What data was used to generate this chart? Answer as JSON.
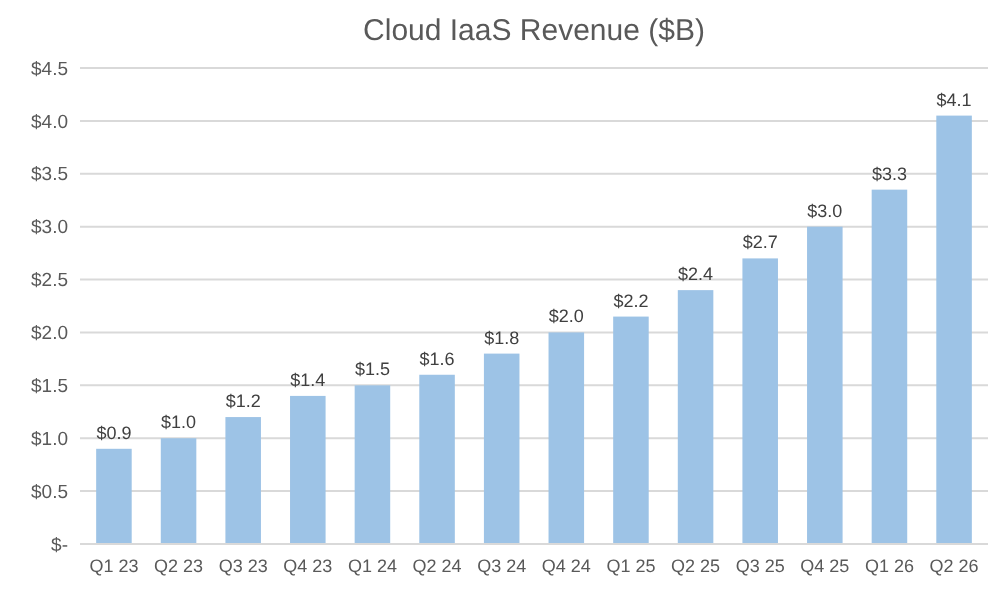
{
  "chart_data": {
    "type": "bar",
    "title": "Cloud IaaS Revenue ($B)",
    "categories": [
      "Q1 23",
      "Q2 23",
      "Q3 23",
      "Q4 23",
      "Q1 24",
      "Q2 24",
      "Q3 24",
      "Q4 24",
      "Q1 25",
      "Q2 25",
      "Q3 25",
      "Q4 25",
      "Q1 26",
      "Q2 26"
    ],
    "values": [
      0.9,
      1.0,
      1.2,
      1.4,
      1.5,
      1.6,
      1.8,
      2.0,
      2.15,
      2.4,
      2.7,
      3.0,
      3.35,
      4.05
    ],
    "value_labels": [
      "$0.9",
      "$1.0",
      "$1.2",
      "$1.4",
      "$1.5",
      "$1.6",
      "$1.8",
      "$2.0",
      "$2.2",
      "$2.4",
      "$2.7",
      "$3.0",
      "$3.3",
      "$4.1"
    ],
    "color": "#9dc3e6",
    "ylim": [
      0,
      4.5
    ],
    "yticks": [
      {
        "value": 0,
        "label": "$-"
      },
      {
        "value": 0.5,
        "label": "$0.5"
      },
      {
        "value": 1,
        "label": "$1.0"
      },
      {
        "value": 1.5,
        "label": "$1.5"
      },
      {
        "value": 2,
        "label": "$2.0"
      },
      {
        "value": 2.5,
        "label": "$2.5"
      },
      {
        "value": 3,
        "label": "$3.0"
      },
      {
        "value": 3.5,
        "label": "$3.5"
      },
      {
        "value": 4,
        "label": "$4.0"
      },
      {
        "value": 4.5,
        "label": "$4.5"
      }
    ],
    "grid": true
  }
}
